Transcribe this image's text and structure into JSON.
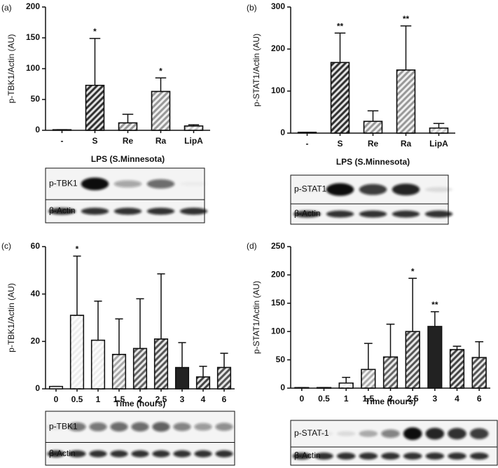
{
  "chart_data": [
    {
      "type": "bar",
      "panel": "(a)",
      "ylabel": "p-TBK1/Actin (AU)",
      "xlabel": "LPS (S.Minnesota)",
      "categories": [
        "-",
        "S",
        "Re",
        "Ra",
        "LipA"
      ],
      "values": [
        1,
        73,
        12,
        63,
        7
      ],
      "errors": [
        0,
        76,
        14,
        22,
        2
      ],
      "significance": [
        null,
        "*",
        null,
        "*",
        null
      ],
      "colors": [
        "#ffffff",
        "#333333",
        "#999999",
        "#999999",
        "#cccccc"
      ],
      "hatch": [
        false,
        true,
        true,
        true,
        true
      ],
      "ylim": [
        0,
        200
      ],
      "yticks": [
        0,
        50,
        100,
        150,
        200
      ],
      "blot_labels": [
        "p-TBK1",
        "β-Actin"
      ]
    },
    {
      "type": "bar",
      "panel": "(b)",
      "ylabel": "p-STAT1/Actin (AU)",
      "xlabel": "LPS (S.Minnesota)",
      "categories": [
        "-",
        "S",
        "Re",
        "Ra",
        "LipA"
      ],
      "values": [
        2,
        168,
        28,
        150,
        12
      ],
      "errors": [
        0,
        70,
        25,
        105,
        11
      ],
      "significance": [
        null,
        "**",
        null,
        "**",
        null
      ],
      "colors": [
        "#ffffff",
        "#333333",
        "#999999",
        "#999999",
        "#cccccc"
      ],
      "hatch": [
        false,
        true,
        true,
        true,
        true
      ],
      "ylim": [
        0,
        300
      ],
      "yticks": [
        0,
        100,
        200,
        300
      ],
      "blot_labels": [
        "p-STAT1",
        "β-Actin"
      ]
    },
    {
      "type": "bar",
      "panel": "(c)",
      "ylabel": "p-TBK1/Actin (AU)",
      "xlabel": "Time (hours)",
      "categories": [
        "0",
        "0.5",
        "1",
        "1.5",
        "2",
        "2.5",
        "3",
        "4",
        "6"
      ],
      "values": [
        1,
        31,
        20.5,
        14.5,
        17,
        21,
        9,
        5,
        9
      ],
      "errors": [
        0,
        25,
        16.5,
        15,
        21,
        27.5,
        10.5,
        4.5,
        6
      ],
      "significance": [
        null,
        "*",
        null,
        null,
        null,
        null,
        null,
        null,
        null
      ],
      "colors": [
        "#ffffff",
        "#eeeeee",
        "#eeeeee",
        "#aaaaaa",
        "#666666",
        "#555555",
        "#222222",
        "#444444",
        "#555555"
      ],
      "hatch": [
        false,
        true,
        true,
        true,
        true,
        true,
        false,
        true,
        true
      ],
      "ylim": [
        0,
        60
      ],
      "yticks": [
        0,
        20,
        40,
        60
      ],
      "blot_labels": [
        "p-TBK1",
        "β-Actin"
      ]
    },
    {
      "type": "bar",
      "panel": "(d)",
      "ylabel": "p-STAT1/Actin (AU)",
      "xlabel": "Time (hours)",
      "categories": [
        "0",
        "0.5",
        "1",
        "1.5",
        "2",
        "2.5",
        "3",
        "4",
        "6"
      ],
      "values": [
        1,
        1,
        9,
        33,
        55,
        100,
        109,
        68,
        54
      ],
      "errors": [
        0,
        0,
        10,
        46,
        58,
        94,
        26,
        6,
        28
      ],
      "significance": [
        null,
        null,
        null,
        null,
        null,
        "*",
        "**",
        null,
        null
      ],
      "colors": [
        "#ffffff",
        "#eeeeee",
        "#eeeeee",
        "#aaaaaa",
        "#666666",
        "#555555",
        "#222222",
        "#444444",
        "#555555"
      ],
      "hatch": [
        false,
        true,
        true,
        true,
        true,
        true,
        false,
        true,
        true
      ],
      "ylim": [
        0,
        250
      ],
      "yticks": [
        0,
        50,
        100,
        150,
        200,
        250
      ],
      "blot_labels": [
        "p-STAT-1",
        "β-Actin"
      ]
    }
  ]
}
